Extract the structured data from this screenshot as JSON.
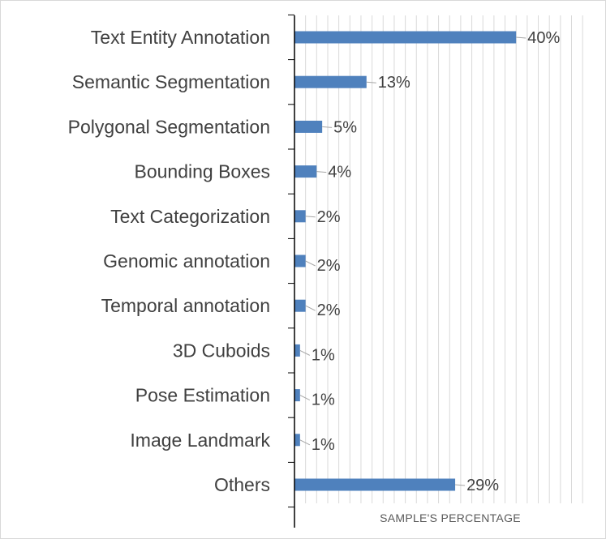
{
  "chart_data": {
    "type": "bar",
    "orientation": "horizontal",
    "categories": [
      "Text Entity Annotation",
      "Semantic Segmentation",
      "Polygonal Segmentation",
      "Bounding Boxes",
      "Text Categorization",
      "Genomic annotation",
      "Temporal annotation",
      "3D Cuboids",
      "Pose Estimation",
      "Image Landmark",
      "Others"
    ],
    "values": [
      40,
      13,
      5,
      4,
      2,
      2,
      2,
      1,
      1,
      1,
      29
    ],
    "data_labels": [
      "40%",
      "13%",
      "5%",
      "4%",
      "2%",
      "2%",
      "2%",
      "1%",
      "1%",
      "1%",
      "29%"
    ],
    "xlabel": "SAMPLE'S PERCENTAGE",
    "xlim": [
      0,
      53
    ],
    "grid": true,
    "legend": "none",
    "bar_color": "#4f81bd",
    "grid_color": "#d9d9d9",
    "axis_color": "#000000",
    "text_color": "#404040"
  }
}
